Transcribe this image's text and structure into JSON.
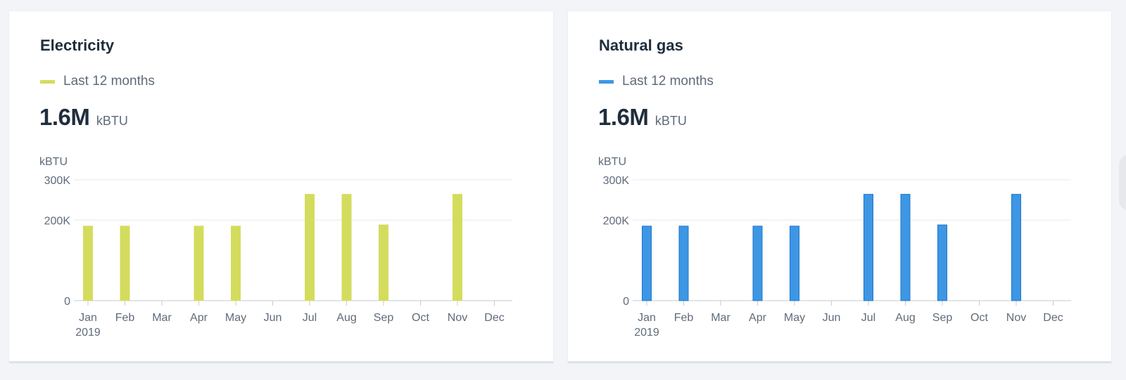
{
  "cards": [
    {
      "title": "Electricity",
      "legend": "Last 12 months",
      "total_value": "1.6M",
      "total_unit": "kBTU",
      "color": "#d4dc5e",
      "stroke": "#d4dc5e"
    },
    {
      "title": "Natural gas",
      "legend": "Last 12 months",
      "total_value": "1.6M",
      "total_unit": "kBTU",
      "color": "#3d97e4",
      "stroke": "#1f75c9"
    }
  ],
  "chart_data": [
    {
      "type": "bar",
      "ylabel": "kBTU",
      "ylim": [
        0,
        300000
      ],
      "y_ticks": [
        0,
        200000,
        300000
      ],
      "y_tick_labels": [
        "0",
        "200K",
        "300K"
      ],
      "gridlines": [
        200000,
        300000
      ],
      "categories": [
        "Jan",
        "Feb",
        "Mar",
        "Apr",
        "May",
        "Jun",
        "Jul",
        "Aug",
        "Sep",
        "Oct",
        "Nov",
        "Dec"
      ],
      "year_label": "2019",
      "series": [
        {
          "values": [
            185000,
            185000,
            0,
            185000,
            185000,
            0,
            264000,
            264000,
            188000,
            0,
            264000,
            0
          ]
        }
      ]
    },
    {
      "type": "bar",
      "ylabel": "kBTU",
      "ylim": [
        0,
        300000
      ],
      "y_ticks": [
        0,
        200000,
        300000
      ],
      "y_tick_labels": [
        "0",
        "200K",
        "300K"
      ],
      "gridlines": [
        200000,
        300000
      ],
      "categories": [
        "Jan",
        "Feb",
        "Mar",
        "Apr",
        "May",
        "Jun",
        "Jul",
        "Aug",
        "Sep",
        "Oct",
        "Nov",
        "Dec"
      ],
      "year_label": "2019",
      "series": [
        {
          "values": [
            185000,
            185000,
            0,
            185000,
            185000,
            0,
            264000,
            264000,
            188000,
            0,
            264000,
            0
          ]
        }
      ]
    }
  ]
}
